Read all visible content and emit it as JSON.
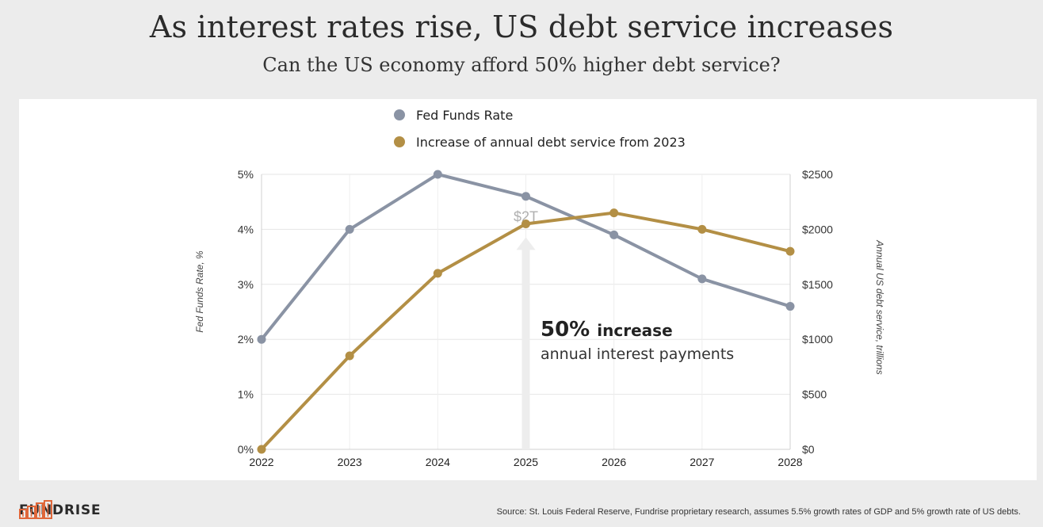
{
  "header": {
    "title": "As interest rates rise, US debt service increases",
    "subtitle": "Can the US economy afford 50% higher debt service?"
  },
  "footer": {
    "brand": "FUNDRISE",
    "source": "Source: St. Louis Federal Reserve, Fundrise proprietary research, assumes 5.5% growth rates of GDP and 5% growth rate of US debts."
  },
  "colors": {
    "fed_series": "#8a93a4",
    "debt_series": "#b38f45",
    "brand": "#e0673a"
  },
  "icons": {
    "logo": "fundrise-buildings-icon",
    "annotation_arrow": "arrow-up-icon"
  },
  "chart_data": {
    "type": "line",
    "x": [
      "2022",
      "2023",
      "2024",
      "2025",
      "2026",
      "2027",
      "2028"
    ],
    "series": [
      {
        "name": "Fed Funds Rate",
        "axis": "left",
        "values": [
          2.0,
          4.0,
          5.0,
          4.6,
          3.9,
          3.1,
          2.6
        ]
      },
      {
        "name": "Increase of annual debt service from 2023",
        "axis": "right",
        "values": [
          0,
          850,
          1600,
          2050,
          2150,
          2000,
          1800
        ]
      }
    ],
    "y_left": {
      "label": "Fed Funds Rate, %",
      "range": [
        0,
        5
      ],
      "ticks": [
        "0%",
        "1%",
        "2%",
        "3%",
        "4%",
        "5%"
      ]
    },
    "y_right": {
      "label": "Annual US debt service, trillions",
      "range": [
        0,
        2500
      ],
      "ticks": [
        "$0",
        "$500",
        "$1000",
        "$1500",
        "$2000",
        "$2500"
      ]
    },
    "grid": "horizontal",
    "legend_position": "top-center",
    "annotations": {
      "arrow_label": "$2T",
      "arrow_year": "2025",
      "arrow_value": 2000,
      "headline_bold": "50%",
      "headline_rest": "increase",
      "detail": "annual interest payments"
    }
  }
}
